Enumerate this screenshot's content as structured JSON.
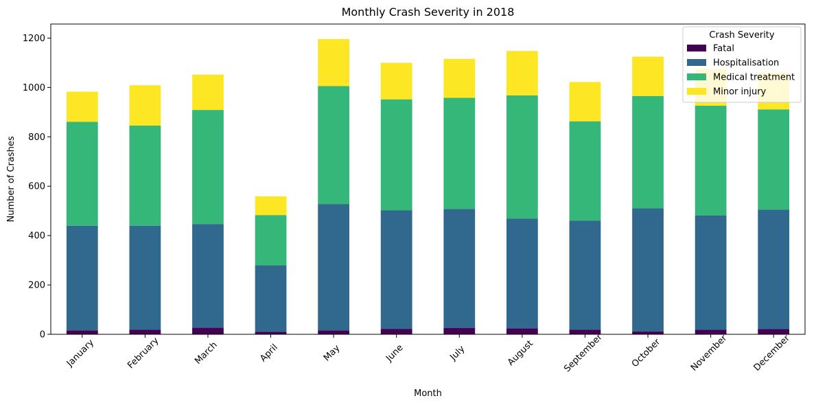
{
  "chart_data": {
    "type": "bar",
    "stacked": true,
    "title": "Monthly Crash Severity in 2018",
    "xlabel": "Month",
    "ylabel": "Number of Crashes",
    "ylim": [
      0,
      1257
    ],
    "yticks": [
      0,
      200,
      400,
      600,
      800,
      1000,
      1200
    ],
    "grid": false,
    "legend": {
      "title": "Crash Severity",
      "placement": "top-right"
    },
    "categories": [
      "January",
      "February",
      "March",
      "April",
      "May",
      "June",
      "July",
      "August",
      "September",
      "October",
      "November",
      "December"
    ],
    "series": [
      {
        "name": "Fatal",
        "color": "#440154",
        "values": [
          16,
          19,
          27,
          10,
          16,
          22,
          26,
          24,
          19,
          11,
          18,
          21
        ]
      },
      {
        "name": "Hospitalisation",
        "color": "#31688e",
        "values": [
          424,
          421,
          420,
          270,
          512,
          480,
          482,
          445,
          442,
          500,
          464,
          484
        ]
      },
      {
        "name": "Medical treatment",
        "color": "#35b779",
        "values": [
          421,
          406,
          462,
          203,
          478,
          450,
          450,
          499,
          402,
          454,
          444,
          406
        ]
      },
      {
        "name": "Minor injury",
        "color": "#fde725",
        "values": [
          122,
          163,
          143,
          76,
          190,
          148,
          158,
          180,
          159,
          160,
          148,
          148
        ]
      }
    ]
  }
}
